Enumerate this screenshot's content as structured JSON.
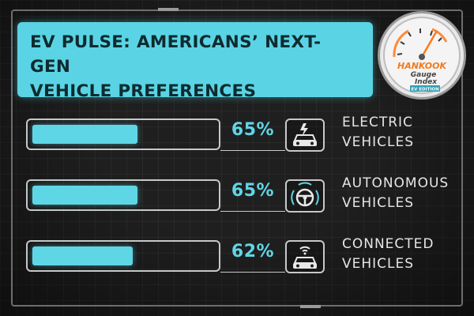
{
  "title": {
    "line1": "EV PULSE: AMERICANS’ NEXT-GEN",
    "line2": "VEHICLE PREFERENCES"
  },
  "badge": {
    "brand": "HANKOOK",
    "name_line1": "Gauge",
    "name_line2": "Index",
    "edition": "EV EDITION",
    "icon": "gauge-icon"
  },
  "colors": {
    "accent": "#5fd6e6",
    "background": "#1f1f1f",
    "text": "#e6e6e6"
  },
  "chart_data": {
    "type": "bar",
    "orientation": "horizontal",
    "categories": [
      "ELECTRIC VEHICLES",
      "AUTONOMOUS VEHICLES",
      "CONNECTED VEHICLES"
    ],
    "values": [
      65,
      65,
      62
    ],
    "unit": "%",
    "xlim": [
      0,
      100
    ],
    "grid": false,
    "title": "EV PULSE: AMERICANS’ NEXT-GEN VEHICLE PREFERENCES"
  },
  "rows": [
    {
      "value": 65,
      "pct_label": "65%",
      "label_line1": "ELECTRIC",
      "label_line2": "VEHICLES",
      "icon": "electric-car-icon"
    },
    {
      "value": 65,
      "pct_label": "65%",
      "label_line1": "AUTONOMOUS",
      "label_line2": "VEHICLES",
      "icon": "steering-wheel-icon"
    },
    {
      "value": 62,
      "pct_label": "62%",
      "label_line1": "CONNECTED",
      "label_line2": "VEHICLES",
      "icon": "connected-car-icon"
    }
  ]
}
